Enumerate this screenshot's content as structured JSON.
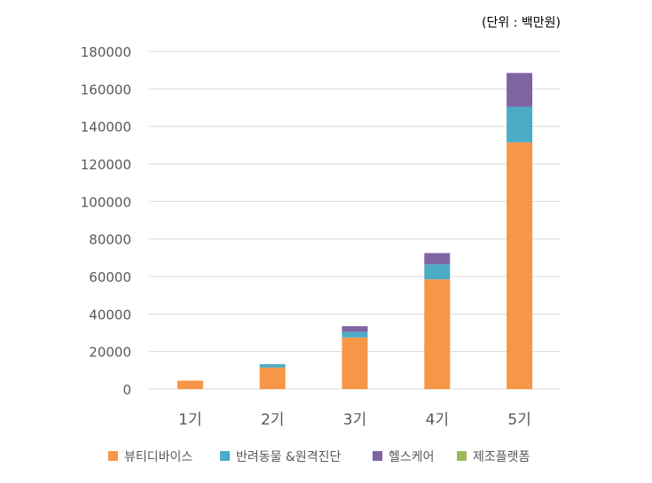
{
  "chart_data": {
    "type": "bar",
    "stacked": true,
    "unit_note": "(단위 : 백만원)",
    "categories": [
      "1기",
      "2기",
      "3기",
      "4기",
      "5기"
    ],
    "series": [
      {
        "name": "뷰티디바이스",
        "color": "#F79646",
        "values": [
          4500,
          11500,
          27500,
          58500,
          131500
        ]
      },
      {
        "name": "반려동물 &원격진단",
        "color": "#4BACC6",
        "values": [
          0,
          1800,
          3000,
          8000,
          19000
        ]
      },
      {
        "name": "헬스케어",
        "color": "#8064A2",
        "values": [
          0,
          0,
          3000,
          6000,
          18000
        ]
      },
      {
        "name": "제조플랫폼",
        "color": "#9BBB59",
        "values": [
          0,
          0,
          0,
          0,
          0
        ]
      }
    ],
    "ylim": [
      0,
      180000
    ],
    "yticks": [
      0,
      20000,
      40000,
      60000,
      80000,
      100000,
      120000,
      140000,
      160000,
      180000
    ],
    "grid": true,
    "legend_position": "bottom"
  }
}
